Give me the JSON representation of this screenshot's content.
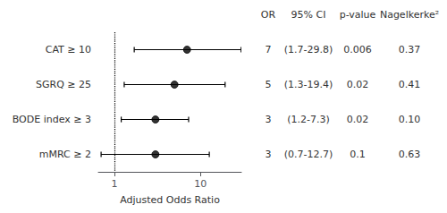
{
  "chart_data": {
    "type": "forest",
    "xlabel": "Adjusted Odds Ratio",
    "categories": [
      "CAT ≥ 10",
      "SGRQ ≥ 25",
      "BODE index ≥ 3",
      "mMRC ≥ 2"
    ],
    "values": [
      7,
      5,
      3,
      3
    ],
    "ci_low": [
      1.7,
      1.3,
      1.2,
      0.7
    ],
    "ci_high": [
      29.8,
      19.4,
      7.3,
      12.7
    ],
    "ref_line": 1,
    "log": "x",
    "xlim": [
      0.65,
      30
    ],
    "xticks": [
      1,
      10
    ],
    "grid": false,
    "color": "#000000",
    "marker": "circle",
    "table": {
      "columns": [
        "OR",
        "95% CI",
        "p-value",
        "Nagelkerke²"
      ],
      "rows": [
        [
          "7",
          "(1.7-29.8)",
          "0.006",
          "0.37"
        ],
        [
          "5",
          "(1.3-19.4)",
          "0.02",
          "0.41"
        ],
        [
          "3",
          "(1.2-7.3)",
          "0.02",
          "0.10"
        ],
        [
          "3",
          "(0.7-12.7)",
          "0.1",
          "0.63"
        ]
      ]
    }
  }
}
